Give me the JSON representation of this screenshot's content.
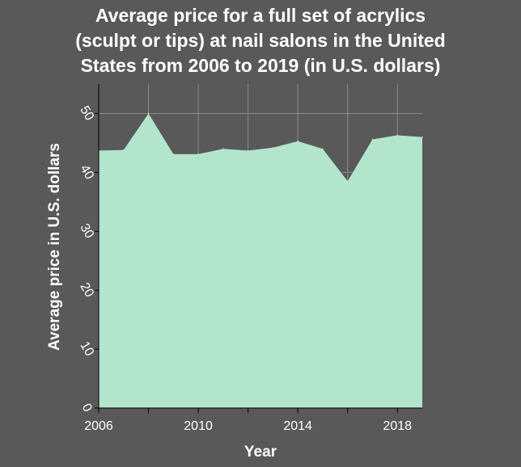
{
  "chart_data": {
    "type": "area",
    "title_lines": [
      "Average price for a full set of acrylics",
      "(sculpt or tips) at nail salons in the United",
      "States from 2006 to 2019 (in U.S. dollars)"
    ],
    "xlabel": "Year",
    "ylabel": "Average price in U.S. dollars",
    "x": [
      2006,
      2007,
      2008,
      2009,
      2010,
      2011,
      2012,
      2013,
      2014,
      2015,
      2016,
      2017,
      2018,
      2019
    ],
    "values": [
      43.7,
      43.8,
      50.0,
      43.1,
      43.1,
      44.0,
      43.7,
      44.2,
      45.3,
      44.0,
      38.5,
      45.6,
      46.3,
      46.0
    ],
    "xlim": [
      2006,
      2019
    ],
    "ylim": [
      0,
      55
    ],
    "x_ticks": [
      2006,
      2008,
      2010,
      2012,
      2014,
      2016,
      2018
    ],
    "x_tick_labels": [
      "2006",
      "",
      "2010",
      "",
      "2014",
      "",
      "2018"
    ],
    "y_ticks": [
      0,
      10,
      20,
      30,
      40,
      50
    ],
    "y_tick_labels": [
      "0",
      "10",
      "20",
      "30",
      "40",
      "50"
    ],
    "grid": true,
    "colors": {
      "background": "#595959",
      "fill": "#b3e5cc",
      "grid": "#8c8c8c",
      "text": "#ffffff"
    }
  }
}
